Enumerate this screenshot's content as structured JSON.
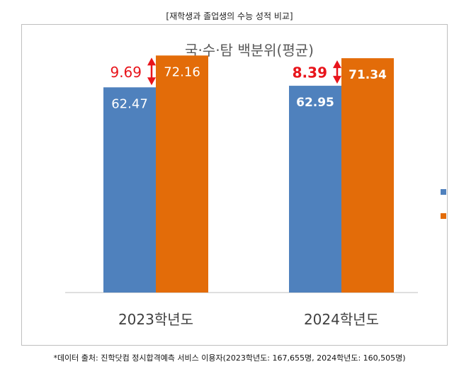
{
  "header": {
    "caption": "[재학생과 졸업생의 수능 성적 비교]"
  },
  "footer": {
    "source": "*데이터 출처: 진학닷컴 정시합격예측 서비스 이용자(2023학년도: 167,655명, 2024학년도: 160,505명)"
  },
  "colors": {
    "blue": "#4F81BD",
    "orange": "#E36C09",
    "red": "#E8141B",
    "axis": "#bfbfbf"
  },
  "chart_data": {
    "type": "bar",
    "title": "국·수·탐 백분위(평균)",
    "categories": [
      "2023학년도",
      "2024학년도"
    ],
    "series": [
      {
        "values": [
          62.47,
          62.95
        ],
        "color": "#4F81BD"
      },
      {
        "values": [
          72.16,
          71.34
        ],
        "color": "#E36C09"
      }
    ],
    "differences": [
      "9.69",
      "8.39"
    ],
    "data_labels": [
      [
        "62.47",
        "62.95"
      ],
      [
        "72.16",
        "71.34"
      ]
    ],
    "ylim": [
      0,
      80
    ],
    "grid": false,
    "legend": "right (partially cut off, markers only)"
  }
}
